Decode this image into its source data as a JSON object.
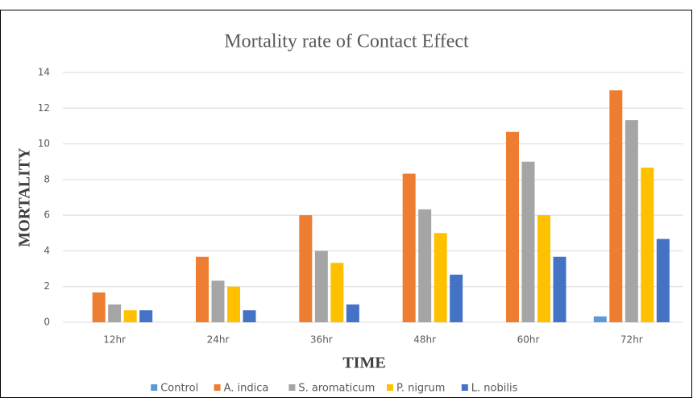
{
  "chart_data": {
    "type": "bar",
    "title": "Mortality  rate  of Contact Effect",
    "x_label": "TIME",
    "y_label": "MORTALITY",
    "categories": [
      "12hr",
      "24hr",
      "36hr",
      "48hr",
      "60hr",
      "72hr"
    ],
    "series": [
      {
        "name": "Control",
        "color": "#5b9bd5",
        "values": [
          0,
          0,
          0,
          0,
          0,
          0.33
        ]
      },
      {
        "name": "A. indica",
        "color": "#ed7d31",
        "values": [
          1.67,
          3.67,
          6,
          8.33,
          10.67,
          13
        ]
      },
      {
        "name": "S. aromaticum",
        "color": "#a5a5a5",
        "values": [
          1,
          2.33,
          4,
          6.33,
          9,
          11.33
        ]
      },
      {
        "name": "P. nigrum",
        "color": "#ffc000",
        "values": [
          0.67,
          2,
          3.33,
          5,
          6,
          8.67
        ]
      },
      {
        "name": "L. nobilis",
        "color": "#4472c4",
        "values": [
          0.67,
          0.67,
          1,
          2.67,
          3.67,
          4.67
        ]
      }
    ],
    "ylim": [
      0,
      14
    ],
    "yticks": [
      0,
      2,
      4,
      6,
      8,
      10,
      12,
      14
    ],
    "grid": true,
    "legend": "bottom"
  }
}
